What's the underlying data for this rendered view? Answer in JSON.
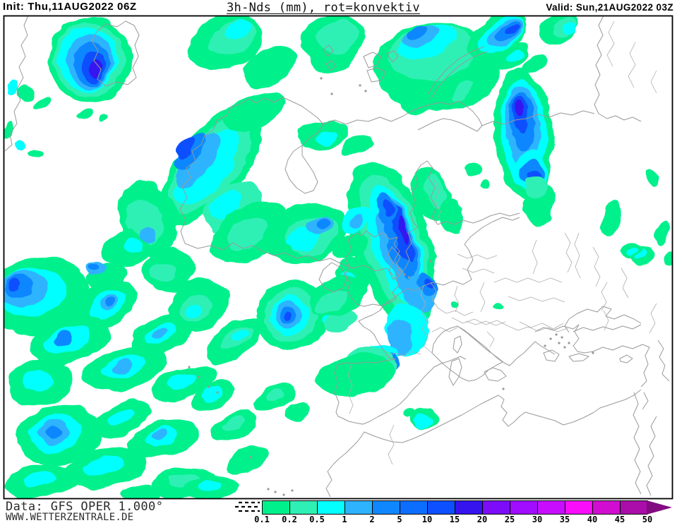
{
  "header": {
    "init": "Init: Thu,11AUG2022 06Z",
    "title": "3h-Nds (mm), rot=konvektiv",
    "valid": "Valid: Sun,21AUG2022 03Z"
  },
  "footer": {
    "data_source": "Data: GFS OPER 1.000°",
    "website": "WWW.WETTERZENTRALE.DE"
  },
  "legend": {
    "unit": "mm",
    "tick_labels": [
      "0.1",
      "0.2",
      "0.5",
      "1",
      "2",
      "5",
      "10",
      "15",
      "20",
      "25",
      "30",
      "35",
      "40",
      "45",
      "50"
    ],
    "box_colors": [
      "#00F08C",
      "#2EF0B4",
      "#04FFFF",
      "#2EB4FE",
      "#0F87FF",
      "#0C6EFF",
      "#0C50FF",
      "#3614F0",
      "#7D0DF8",
      "#A00DFF",
      "#C80DFF",
      "#FA0DFA",
      "#D20DD2",
      "#AA0DAA"
    ],
    "overflow_color": "#820B82"
  },
  "map": {
    "coastline_color": "#999999",
    "border_color": "#ADADAD",
    "frame_color": "#000000",
    "background": "#FFFFFF"
  }
}
